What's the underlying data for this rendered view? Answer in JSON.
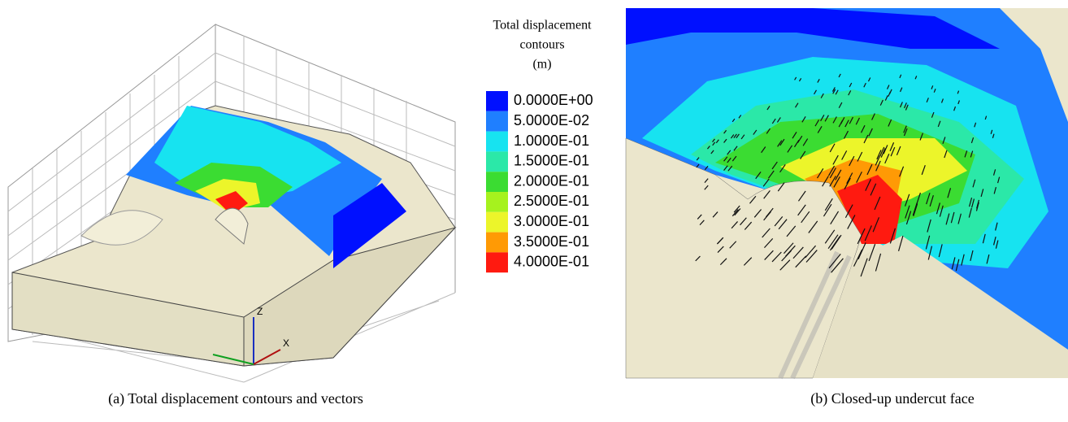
{
  "figure": {
    "legend": {
      "title": [
        "Total displacement",
        "contours",
        "(m)"
      ],
      "entries": [
        {
          "label": "0.0000E+00",
          "color": "#0010ff"
        },
        {
          "label": "5.0000E-02",
          "color": "#1f7fff"
        },
        {
          "label": "1.0000E-01",
          "color": "#17e3f0"
        },
        {
          "label": "1.5000E-01",
          "color": "#2be8a8"
        },
        {
          "label": "2.0000E-01",
          "color": "#3bdc32"
        },
        {
          "label": "2.5000E-01",
          "color": "#a6f21e"
        },
        {
          "label": "3.0000E-01",
          "color": "#ecf52a"
        },
        {
          "label": "3.5000E-01",
          "color": "#ff9a05"
        },
        {
          "label": "4.0000E-01",
          "color": "#ff1a10"
        }
      ]
    },
    "axis_labels": {
      "z": "Z",
      "x": "X"
    },
    "captions": [
      "(a) Total displacement contours and vectors",
      "(b) Closed-up undercut face"
    ]
  }
}
